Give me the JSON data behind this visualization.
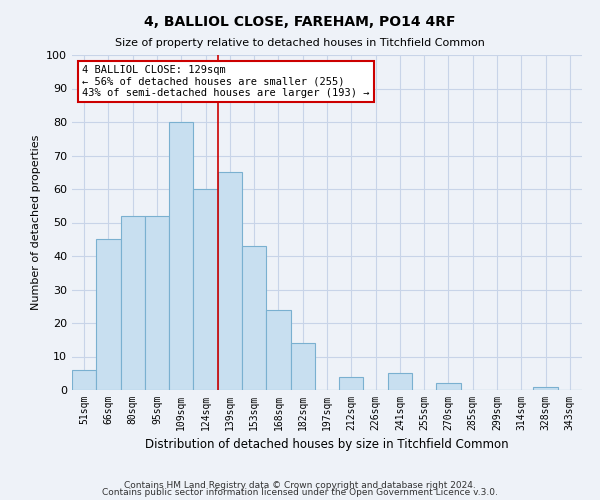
{
  "title": "4, BALLIOL CLOSE, FAREHAM, PO14 4RF",
  "subtitle": "Size of property relative to detached houses in Titchfield Common",
  "xlabel": "Distribution of detached houses by size in Titchfield Common",
  "ylabel": "Number of detached properties",
  "bin_labels": [
    "51sqm",
    "66sqm",
    "80sqm",
    "95sqm",
    "109sqm",
    "124sqm",
    "139sqm",
    "153sqm",
    "168sqm",
    "182sqm",
    "197sqm",
    "212sqm",
    "226sqm",
    "241sqm",
    "255sqm",
    "270sqm",
    "285sqm",
    "299sqm",
    "314sqm",
    "328sqm",
    "343sqm"
  ],
  "bar_values": [
    6,
    45,
    52,
    52,
    80,
    60,
    65,
    43,
    24,
    14,
    0,
    4,
    0,
    5,
    0,
    2,
    0,
    0,
    0,
    1,
    0
  ],
  "bar_color": "#c8dff0",
  "bar_edge_color": "#7ab0d0",
  "vline_x": 5.5,
  "vline_color": "#cc0000",
  "annotation_title": "4 BALLIOL CLOSE: 129sqm",
  "annotation_line1": "← 56% of detached houses are smaller (255)",
  "annotation_line2": "43% of semi-detached houses are larger (193) →",
  "annotation_box_edge": "#cc0000",
  "annotation_box_face": "#ffffff",
  "ylim": [
    0,
    100
  ],
  "yticks": [
    0,
    10,
    20,
    30,
    40,
    50,
    60,
    70,
    80,
    90,
    100
  ],
  "grid_color": "#c8d4e8",
  "background_color": "#eef2f8",
  "footnote1": "Contains HM Land Registry data © Crown copyright and database right 2024.",
  "footnote2": "Contains public sector information licensed under the Open Government Licence v.3.0."
}
